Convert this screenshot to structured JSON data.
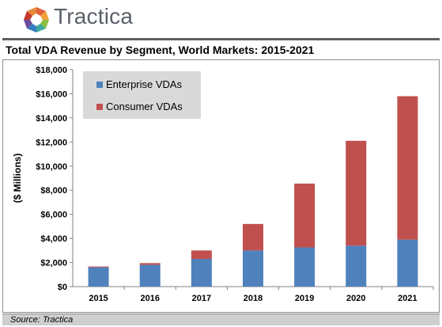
{
  "brand": {
    "name": "Tractica",
    "logo_icon": "tractica-logo-icon"
  },
  "colors": {
    "enterprise": "#4f81bd",
    "consumer": "#c0504d",
    "legend_bg": "#d9d9d9"
  },
  "source": "Source: Tractica",
  "chart_data": {
    "type": "bar",
    "stacked": true,
    "title": "Total VDA Revenue by Segment, World Markets: 2015-2021",
    "ylabel": "($ Millions)",
    "xlabel": "",
    "categories": [
      "2015",
      "2016",
      "2017",
      "2018",
      "2019",
      "2020",
      "2021"
    ],
    "series": [
      {
        "name": "Enterprise VDAs",
        "values": [
          1600,
          1800,
          2300,
          3000,
          3250,
          3400,
          3900
        ]
      },
      {
        "name": "Consumer VDAs",
        "values": [
          70,
          150,
          700,
          2200,
          5300,
          8700,
          11900
        ]
      }
    ],
    "ylim": [
      0,
      18000
    ],
    "yticks": [
      "$0",
      "$2,000",
      "$4,000",
      "$6,000",
      "$8,000",
      "$10,000",
      "$12,000",
      "$14,000",
      "$16,000",
      "$18,000"
    ],
    "grid": false,
    "legend_position": "top-left"
  }
}
